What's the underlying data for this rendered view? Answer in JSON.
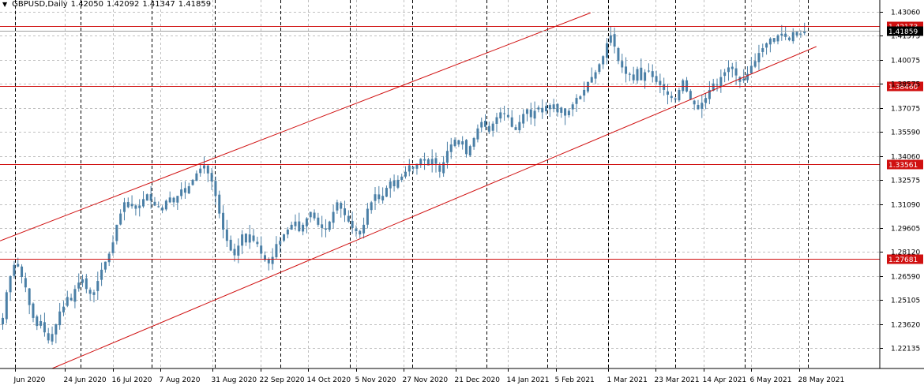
{
  "header": {
    "symbol": "GBPUSD,Daily",
    "open": "1.42050",
    "high": "1.42092",
    "low": "1.41347",
    "close": "1.41859"
  },
  "colors": {
    "candle": "#4a7fa6",
    "grid": "#c0c0c0",
    "session": "#000000",
    "level": "#d01010",
    "channel": "#d01010",
    "price_badge": "#000000"
  },
  "chart_data": {
    "type": "candlestick",
    "title": "GBPUSD,Daily",
    "ylim": [
      1.2085,
      1.438
    ],
    "y_ticks": [
      "1.43060",
      "1.41575",
      "1.40075",
      "1.38575",
      "1.37075",
      "1.35590",
      "1.34060",
      "1.32575",
      "1.31090",
      "1.29605",
      "1.28120",
      "1.26590",
      "1.25105",
      "1.23620",
      "1.22135"
    ],
    "x_ticks": [
      "1 Jun 2020",
      "24 Jun 2020",
      "16 Jul 2020",
      "7 Aug 2020",
      "31 Aug 2020",
      "22 Sep 2020",
      "14 Oct 2020",
      "5 Nov 2020",
      "27 Nov 2020",
      "21 Dec 2020",
      "14 Jan 2021",
      "5 Feb 2021",
      "1 Mar 2021",
      "23 Mar 2021",
      "14 Apr 2021",
      "6 May 2021",
      "28 May 2021"
    ],
    "x_tick_labels_display": [
      "Jun 2020",
      "24 Jun 2020",
      "16 Jul 2020",
      "7 Aug 2020",
      "31 Aug 2020",
      "22 Sep 2020",
      "14 Oct 2020",
      "5 Nov 2020",
      "27 Nov 2020",
      "21 Dec 2020",
      "14 Jan 2021",
      "5 Feb 2021",
      "1 Mar 2021",
      "23 Mar 2021",
      "14 Apr 2021",
      "6 May 2021",
      "28 May 2021"
    ],
    "last_price": "1.41859",
    "horizontal_levels": [
      {
        "label": "1.42173",
        "value": 1.42173
      },
      {
        "label": "1.38460",
        "value": 1.3846
      },
      {
        "label": "1.33561",
        "value": 1.33561
      },
      {
        "label": "1.27681",
        "value": 1.27681
      }
    ],
    "channel": {
      "upper": {
        "start": {
          "date": "2020-05-25",
          "value": 1.288
        },
        "end": {
          "date": "2021-02-21",
          "value": 1.43
        }
      },
      "lower": {
        "start": {
          "date": "2020-06-18",
          "value": 1.2085
        },
        "end": {
          "date": "2021-06-05",
          "value": 1.409
        }
      }
    },
    "series": [
      {
        "date_range": [
          "2020-05-25",
          "2021-05-31"
        ],
        "closes": [
          1.24,
          1.256,
          1.266,
          1.273,
          1.272,
          1.2655,
          1.259,
          1.248,
          1.24,
          1.235,
          1.238,
          1.231,
          1.226,
          1.23,
          1.236,
          1.244,
          1.247,
          1.253,
          1.251,
          1.258,
          1.262,
          1.264,
          1.258,
          1.255,
          1.256,
          1.263,
          1.27,
          1.275,
          1.28,
          1.287,
          1.298,
          1.305,
          1.312,
          1.309,
          1.311,
          1.308,
          1.31,
          1.314,
          1.317,
          1.313,
          1.31,
          1.309,
          1.307,
          1.313,
          1.315,
          1.312,
          1.316,
          1.32,
          1.318,
          1.322,
          1.326,
          1.33,
          1.333,
          1.335,
          1.33,
          1.325,
          1.316,
          1.305,
          1.295,
          1.288,
          1.282,
          1.279,
          1.285,
          1.292,
          1.287,
          1.292,
          1.288,
          1.286,
          1.28,
          1.276,
          1.274,
          1.278,
          1.286,
          1.288,
          1.292,
          1.295,
          1.298,
          1.3,
          1.294,
          1.298,
          1.302,
          1.306,
          1.302,
          1.298,
          1.296,
          1.295,
          1.3,
          1.306,
          1.312,
          1.308,
          1.304,
          1.3,
          1.296,
          1.294,
          1.292,
          1.298,
          1.308,
          1.312,
          1.317,
          1.314,
          1.316,
          1.321,
          1.325,
          1.322,
          1.326,
          1.328,
          1.331,
          1.335,
          1.333,
          1.336,
          1.339,
          1.338,
          1.335,
          1.339,
          1.336,
          1.331,
          1.337,
          1.344,
          1.348,
          1.351,
          1.348,
          1.35,
          1.342,
          1.347,
          1.352,
          1.358,
          1.362,
          1.359,
          1.356,
          1.361,
          1.365,
          1.368,
          1.367,
          1.365,
          1.359,
          1.357,
          1.362,
          1.367,
          1.37,
          1.365,
          1.369,
          1.371,
          1.368,
          1.372,
          1.37,
          1.373,
          1.368,
          1.371,
          1.366,
          1.369,
          1.373,
          1.377,
          1.378,
          1.382,
          1.387,
          1.39,
          1.393,
          1.398,
          1.403,
          1.411,
          1.416,
          1.409,
          1.4,
          1.396,
          1.392,
          1.392,
          1.388,
          1.395,
          1.388,
          1.393,
          1.394,
          1.39,
          1.387,
          1.385,
          1.382,
          1.379,
          1.377,
          1.376,
          1.382,
          1.388,
          1.381,
          1.376,
          1.373,
          1.37,
          1.374,
          1.377,
          1.382,
          1.386,
          1.385,
          1.39,
          1.393,
          1.396,
          1.395,
          1.391,
          1.387,
          1.389,
          1.392,
          1.397,
          1.4,
          1.405,
          1.408,
          1.411,
          1.414,
          1.412,
          1.416,
          1.417,
          1.415,
          1.413,
          1.418,
          1.416,
          1.417,
          1.4186
        ]
      }
    ]
  }
}
